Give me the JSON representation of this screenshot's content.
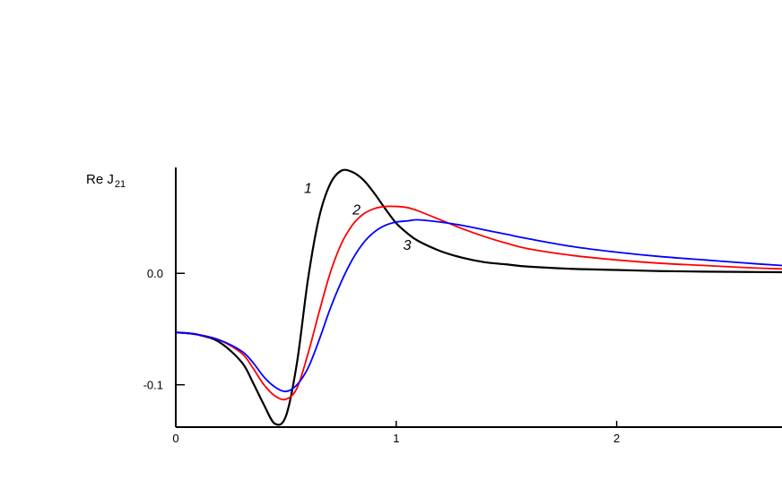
{
  "chart_data": {
    "type": "line",
    "title": "",
    "xlabel": "",
    "ylabel": {
      "main": "Re J",
      "sub": "21"
    },
    "xlim": [
      0,
      2.75
    ],
    "ylim": [
      -0.138,
      0.095
    ],
    "xticks": [
      {
        "value": 0,
        "label": "0"
      },
      {
        "value": 1,
        "label": "1"
      },
      {
        "value": 2,
        "label": "2"
      }
    ],
    "yticks": [
      {
        "value": 0.0,
        "label": "0.0"
      },
      {
        "value": -0.1,
        "label": "-0.1"
      }
    ],
    "grid": false,
    "series": [
      {
        "name": "1",
        "color": "#000000",
        "x": [
          0,
          0.1,
          0.2,
          0.3,
          0.35,
          0.4,
          0.45,
          0.5,
          0.55,
          0.6,
          0.65,
          0.7,
          0.75,
          0.8,
          0.85,
          0.9,
          0.95,
          1.0,
          1.05,
          1.1,
          1.2,
          1.3,
          1.4,
          1.5,
          1.6,
          1.8,
          2.0,
          2.2,
          2.4,
          2.6,
          2.75
        ],
        "y": [
          -0.053,
          -0.055,
          -0.062,
          -0.08,
          -0.098,
          -0.118,
          -0.135,
          -0.128,
          -0.08,
          -0.005,
          0.05,
          0.08,
          0.092,
          0.091,
          0.084,
          0.072,
          0.058,
          0.045,
          0.036,
          0.029,
          0.02,
          0.014,
          0.01,
          0.008,
          0.006,
          0.004,
          0.003,
          0.002,
          0.0015,
          0.0012,
          0.001
        ]
      },
      {
        "name": "2",
        "color": "#ff0000",
        "x": [
          0,
          0.1,
          0.2,
          0.3,
          0.35,
          0.4,
          0.45,
          0.5,
          0.55,
          0.6,
          0.65,
          0.7,
          0.75,
          0.8,
          0.85,
          0.9,
          0.95,
          1.0,
          1.05,
          1.1,
          1.2,
          1.3,
          1.4,
          1.5,
          1.6,
          1.8,
          2.0,
          2.2,
          2.4,
          2.6,
          2.75
        ],
        "y": [
          -0.053,
          -0.055,
          -0.06,
          -0.072,
          -0.085,
          -0.1,
          -0.11,
          -0.113,
          -0.103,
          -0.072,
          -0.035,
          0.0,
          0.026,
          0.043,
          0.053,
          0.058,
          0.06,
          0.06,
          0.059,
          0.056,
          0.048,
          0.04,
          0.033,
          0.027,
          0.022,
          0.016,
          0.012,
          0.009,
          0.007,
          0.005,
          0.004
        ]
      },
      {
        "name": "3",
        "color": "#0000ff",
        "x": [
          0,
          0.1,
          0.2,
          0.3,
          0.35,
          0.4,
          0.45,
          0.5,
          0.55,
          0.6,
          0.65,
          0.7,
          0.75,
          0.8,
          0.85,
          0.9,
          0.95,
          1.0,
          1.05,
          1.1,
          1.2,
          1.3,
          1.4,
          1.5,
          1.6,
          1.8,
          2.0,
          2.2,
          2.4,
          2.6,
          2.75
        ],
        "y": [
          -0.053,
          -0.055,
          -0.06,
          -0.07,
          -0.08,
          -0.093,
          -0.102,
          -0.106,
          -0.1,
          -0.085,
          -0.06,
          -0.032,
          -0.008,
          0.012,
          0.027,
          0.037,
          0.043,
          0.046,
          0.047,
          0.048,
          0.046,
          0.043,
          0.039,
          0.035,
          0.031,
          0.024,
          0.019,
          0.015,
          0.012,
          0.009,
          0.007
        ]
      }
    ],
    "annotations": [
      {
        "text": "1",
        "x": 0.6,
        "y": 0.072
      },
      {
        "text": "2",
        "x": 0.82,
        "y": 0.053
      },
      {
        "text": "3",
        "x": 1.05,
        "y": 0.021
      }
    ]
  }
}
